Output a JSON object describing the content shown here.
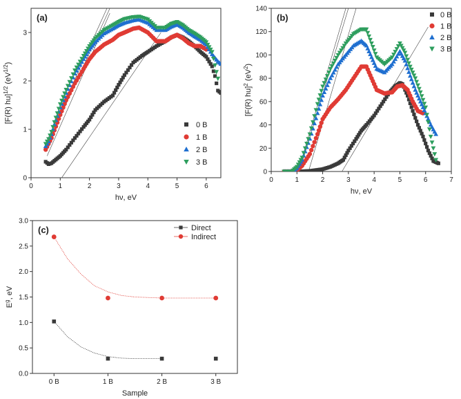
{
  "chart_data": [
    {
      "type": "scatter",
      "panel_label": "(a)",
      "xlabel": "hν, eV",
      "ylabel_parts": [
        "[F(R) hu]",
        "1/2",
        " (eV",
        "1/2",
        ")"
      ],
      "xlim": [
        0,
        6.5
      ],
      "ylim": [
        0,
        3.5
      ],
      "xticks": [
        0,
        1,
        2,
        3,
        4,
        5,
        6
      ],
      "yticks": [
        0,
        1,
        2,
        3
      ],
      "legend": "bottom-right",
      "series": [
        {
          "name": "0 B",
          "color": "#3a3a3a",
          "marker": "square",
          "x": [
            0.5,
            0.6,
            0.7,
            0.8,
            1.0,
            1.2,
            1.5,
            1.8,
            2.0,
            2.2,
            2.5,
            2.8,
            3.0,
            3.2,
            3.5,
            3.8,
            4.0,
            4.3,
            4.6,
            4.8,
            5.0,
            5.2,
            5.4,
            5.6,
            5.8,
            6.0,
            6.1,
            6.2,
            6.3,
            6.4,
            6.5
          ],
          "y": [
            0.33,
            0.28,
            0.3,
            0.35,
            0.45,
            0.58,
            0.82,
            1.05,
            1.2,
            1.4,
            1.57,
            1.7,
            1.92,
            2.12,
            2.38,
            2.52,
            2.6,
            2.72,
            2.82,
            2.9,
            2.95,
            2.9,
            2.82,
            2.72,
            2.6,
            2.5,
            2.4,
            2.3,
            2.1,
            1.8,
            1.75
          ]
        },
        {
          "name": "1 B",
          "color": "#e03b34",
          "marker": "circle",
          "x": [
            0.5,
            0.6,
            0.7,
            0.8,
            1.0,
            1.2,
            1.5,
            1.8,
            2.0,
            2.2,
            2.5,
            2.8,
            3.0,
            3.2,
            3.5,
            3.7,
            4.0,
            4.3,
            4.6,
            4.8,
            5.0,
            5.2,
            5.4,
            5.6,
            5.8,
            6.0
          ],
          "y": [
            0.58,
            0.7,
            0.82,
            0.98,
            1.3,
            1.6,
            1.95,
            2.25,
            2.45,
            2.6,
            2.75,
            2.85,
            2.95,
            3.0,
            3.08,
            3.1,
            3.0,
            2.82,
            2.82,
            2.9,
            2.95,
            2.88,
            2.78,
            2.72,
            2.72,
            2.65
          ]
        },
        {
          "name": "2 B",
          "color": "#1f6fd0",
          "marker": "triangle",
          "x": [
            0.5,
            0.6,
            0.7,
            0.8,
            1.0,
            1.2,
            1.5,
            1.8,
            2.0,
            2.2,
            2.5,
            2.8,
            3.0,
            3.2,
            3.5,
            3.7,
            4.0,
            4.3,
            4.6,
            4.8,
            5.0,
            5.2,
            5.4,
            5.6,
            5.8,
            6.0,
            6.2,
            6.4,
            6.5
          ],
          "y": [
            0.65,
            0.75,
            0.9,
            1.1,
            1.45,
            1.75,
            2.15,
            2.45,
            2.65,
            2.8,
            2.98,
            3.08,
            3.15,
            3.2,
            3.25,
            3.27,
            3.2,
            3.05,
            3.05,
            3.12,
            3.17,
            3.1,
            3.0,
            2.92,
            2.85,
            2.75,
            2.55,
            2.4,
            2.35
          ]
        },
        {
          "name": "3 B",
          "color": "#2e9e5e",
          "marker": "triangle-down",
          "x": [
            0.5,
            0.6,
            0.7,
            0.8,
            1.0,
            1.2,
            1.5,
            1.8,
            2.0,
            2.2,
            2.5,
            2.8,
            3.0,
            3.2,
            3.5,
            3.7,
            4.0,
            4.3,
            4.6,
            4.8,
            5.0,
            5.2,
            5.4,
            5.6,
            5.8,
            6.0,
            6.2,
            6.4
          ],
          "y": [
            0.7,
            0.8,
            0.95,
            1.15,
            1.52,
            1.82,
            2.22,
            2.52,
            2.72,
            2.88,
            3.05,
            3.15,
            3.22,
            3.28,
            3.32,
            3.33,
            3.27,
            3.1,
            3.1,
            3.18,
            3.22,
            3.15,
            3.05,
            2.98,
            2.9,
            2.8,
            2.6,
            2.05
          ]
        }
      ],
      "fit_lines": [
        {
          "x": [
            0.5,
            2.6
          ],
          "y": [
            0.7,
            3.5
          ]
        },
        {
          "x": [
            0.5,
            2.7
          ],
          "y": [
            0.6,
            3.5
          ]
        },
        {
          "x": [
            0.55,
            2.7
          ],
          "y": [
            0.45,
            3.4
          ]
        },
        {
          "x": [
            1.05,
            4.45
          ],
          "y": [
            0.0,
            3.0
          ]
        }
      ]
    },
    {
      "type": "scatter",
      "panel_label": "(b)",
      "xlabel": "hν, eV",
      "ylabel_parts": [
        "[F(R) hu]",
        "2",
        " (eV",
        "2",
        ")"
      ],
      "xlim": [
        0,
        7
      ],
      "ylim": [
        0,
        140
      ],
      "xticks": [
        0,
        1,
        2,
        3,
        4,
        5,
        6,
        7
      ],
      "yticks": [
        0,
        20,
        40,
        60,
        80,
        100,
        120,
        140
      ],
      "legend": "top-right",
      "series": [
        {
          "name": "0 B",
          "color": "#3a3a3a",
          "marker": "square",
          "x": [
            0.5,
            1.0,
            1.5,
            2.0,
            2.3,
            2.6,
            2.8,
            3.0,
            3.3,
            3.5,
            3.7,
            4.0,
            4.3,
            4.6,
            4.8,
            5.0,
            5.1,
            5.3,
            5.5,
            5.7,
            5.9,
            6.1,
            6.3,
            6.5
          ],
          "y": [
            0,
            0,
            0.5,
            2,
            4,
            7,
            10,
            18,
            28,
            35,
            40,
            48,
            58,
            68,
            73,
            76,
            75,
            65,
            52,
            40,
            30,
            18,
            9,
            7
          ]
        },
        {
          "name": "1 B",
          "color": "#e03b34",
          "marker": "circle",
          "x": [
            0.5,
            0.8,
            1.0,
            1.2,
            1.5,
            1.8,
            2.0,
            2.3,
            2.6,
            2.9,
            3.2,
            3.5,
            3.7,
            3.9,
            4.1,
            4.4,
            4.7,
            4.9,
            5.1,
            5.3,
            5.5,
            5.7,
            5.9
          ],
          "y": [
            0,
            0,
            1,
            5,
            15,
            32,
            45,
            55,
            62,
            70,
            80,
            90,
            90,
            80,
            70,
            67,
            68,
            73,
            74,
            70,
            60,
            52,
            50
          ]
        },
        {
          "name": "2 B",
          "color": "#1f6fd0",
          "marker": "triangle",
          "x": [
            0.5,
            0.8,
            1.0,
            1.2,
            1.5,
            1.8,
            2.0,
            2.3,
            2.6,
            2.9,
            3.2,
            3.5,
            3.7,
            3.9,
            4.1,
            4.4,
            4.7,
            5.0,
            5.2,
            5.4,
            5.6,
            5.8,
            6.0,
            6.2,
            6.4
          ],
          "y": [
            0,
            0,
            3,
            10,
            28,
            50,
            65,
            80,
            92,
            100,
            108,
            112,
            108,
            98,
            88,
            85,
            92,
            103,
            95,
            82,
            70,
            60,
            50,
            40,
            32
          ]
        },
        {
          "name": "3 B",
          "color": "#2e9e5e",
          "marker": "triangle-down",
          "x": [
            0.5,
            0.8,
            1.0,
            1.2,
            1.5,
            1.8,
            2.0,
            2.3,
            2.6,
            2.9,
            3.2,
            3.5,
            3.7,
            3.9,
            4.1,
            4.4,
            4.7,
            5.0,
            5.2,
            5.4,
            5.6,
            5.8,
            6.0,
            6.2,
            6.4
          ],
          "y": [
            0,
            0,
            4,
            12,
            32,
            58,
            73,
            88,
            100,
            110,
            118,
            122,
            122,
            110,
            98,
            92,
            98,
            110,
            102,
            90,
            80,
            68,
            55,
            30,
            10
          ]
        }
      ],
      "fit_lines": [
        {
          "x": [
            1.05,
            2.9
          ],
          "y": [
            0,
            140
          ]
        },
        {
          "x": [
            1.1,
            3.0
          ],
          "y": [
            0,
            140
          ]
        },
        {
          "x": [
            1.45,
            3.3
          ],
          "y": [
            0,
            140
          ]
        },
        {
          "x": [
            2.75,
            6.1
          ],
          "y": [
            0,
            124
          ]
        }
      ]
    },
    {
      "type": "scatter",
      "panel_label": "(c)",
      "xlabel": "Sample",
      "ylabel_parts": [
        "E",
        "g",
        ", eV"
      ],
      "categories": [
        "0 B",
        "1 B",
        "2 B",
        "3 B"
      ],
      "xlim": [
        -0.4,
        3.4
      ],
      "ylim": [
        0,
        3.0
      ],
      "yticks": [
        0.0,
        0.5,
        1.0,
        1.5,
        2.0,
        2.5,
        3.0
      ],
      "legend": "top-right",
      "series": [
        {
          "name": "Direct",
          "color": "#3a3a3a",
          "marker": "square",
          "values": [
            1.02,
            0.29,
            0.29,
            0.29
          ],
          "curve_x": [
            0,
            0.25,
            0.5,
            0.75,
            1.0,
            1.25,
            1.5,
            1.75,
            2.0
          ],
          "curve_y": [
            1.02,
            0.72,
            0.52,
            0.4,
            0.33,
            0.3,
            0.29,
            0.29,
            0.29
          ]
        },
        {
          "name": "Indirect",
          "color": "#e03b34",
          "marker": "circle",
          "values": [
            2.68,
            1.48,
            1.48,
            1.48
          ],
          "curve_x": [
            0,
            0.25,
            0.5,
            0.75,
            1.0,
            1.25,
            1.5,
            1.75,
            2.0,
            2.5,
            3.0
          ],
          "curve_y": [
            2.68,
            2.25,
            1.95,
            1.72,
            1.6,
            1.53,
            1.5,
            1.49,
            1.48,
            1.48,
            1.48
          ]
        }
      ]
    }
  ]
}
